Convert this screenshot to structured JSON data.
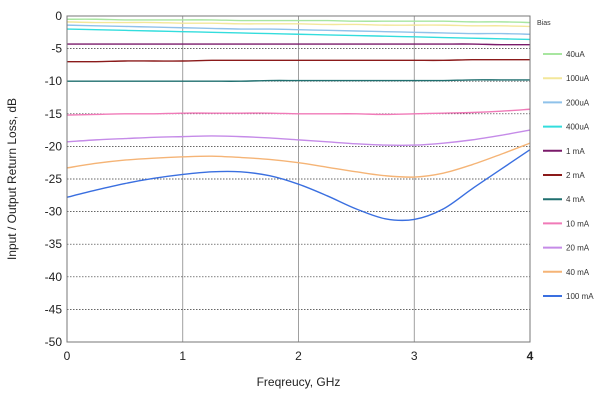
{
  "chart_data": {
    "type": "line",
    "title": "",
    "xlabel": "Freqreucy, GHz",
    "ylabel": "Input / Output Return Loss, dB",
    "xlim": [
      0,
      4
    ],
    "ylim": [
      -50,
      0
    ],
    "x_ticks": [
      "0",
      "1",
      "2",
      "3",
      "4"
    ],
    "y_ticks": [
      "0",
      "-5",
      "-10",
      "-15",
      "-20",
      "-25",
      "-30",
      "-35",
      "-40",
      "-45",
      "-50"
    ],
    "grid": "on",
    "legend_position": "right",
    "legend_title": "Bias",
    "x": [
      0,
      0.25,
      0.5,
      0.75,
      1.0,
      1.25,
      1.5,
      1.75,
      2.0,
      2.25,
      2.5,
      2.75,
      3.0,
      3.25,
      3.5,
      3.75,
      4.0
    ],
    "series": [
      {
        "name": "40uA",
        "color": "#a8e6a0",
        "values": [
          -0.5,
          -0.5,
          -0.6,
          -0.6,
          -0.6,
          -0.6,
          -0.7,
          -0.7,
          -0.7,
          -0.7,
          -0.8,
          -0.8,
          -0.8,
          -0.8,
          -0.9,
          -0.9,
          -1.0
        ]
      },
      {
        "name": "100uA",
        "color": "#f3e79a",
        "values": [
          -0.9,
          -1.0,
          -1.0,
          -1.0,
          -1.1,
          -1.1,
          -1.2,
          -1.2,
          -1.2,
          -1.3,
          -1.3,
          -1.4,
          -1.4,
          -1.4,
          -1.5,
          -1.5,
          -1.6
        ]
      },
      {
        "name": "200uA",
        "color": "#8fc2ea",
        "values": [
          -1.4,
          -1.5,
          -1.6,
          -1.7,
          -1.8,
          -1.9,
          -2.0,
          -2.0,
          -2.1,
          -2.2,
          -2.3,
          -2.4,
          -2.5,
          -2.6,
          -2.7,
          -2.7,
          -2.8
        ]
      },
      {
        "name": "400uA",
        "color": "#33dddd",
        "values": [
          -2.0,
          -2.1,
          -2.2,
          -2.3,
          -2.4,
          -2.5,
          -2.6,
          -2.7,
          -2.8,
          -2.9,
          -3.0,
          -3.1,
          -3.2,
          -3.3,
          -3.4,
          -3.5,
          -3.6
        ]
      },
      {
        "name": "1 mA",
        "color": "#7a1a6a",
        "values": [
          -4.3,
          -4.3,
          -4.3,
          -4.3,
          -4.3,
          -4.3,
          -4.3,
          -4.3,
          -4.3,
          -4.3,
          -4.3,
          -4.3,
          -4.3,
          -4.3,
          -4.3,
          -4.4,
          -4.4
        ]
      },
      {
        "name": "2 mA",
        "color": "#8b1a1a",
        "values": [
          -7.0,
          -7.0,
          -6.9,
          -6.9,
          -6.9,
          -6.8,
          -6.8,
          -6.8,
          -6.8,
          -6.8,
          -6.8,
          -6.8,
          -6.8,
          -6.8,
          -6.7,
          -6.7,
          -6.7
        ]
      },
      {
        "name": "4 mA",
        "color": "#1f6f6f",
        "values": [
          -10.0,
          -10.0,
          -10.0,
          -10.0,
          -10.0,
          -10.0,
          -10.0,
          -9.9,
          -9.9,
          -9.9,
          -9.9,
          -9.9,
          -9.9,
          -9.9,
          -9.8,
          -9.8,
          -9.8
        ]
      },
      {
        "name": "10 mA",
        "color": "#f07ab8",
        "values": [
          -15.2,
          -15.1,
          -15.0,
          -15.0,
          -14.9,
          -14.9,
          -14.9,
          -14.9,
          -15.0,
          -15.0,
          -15.0,
          -15.1,
          -15.0,
          -14.9,
          -14.8,
          -14.6,
          -14.3
        ]
      },
      {
        "name": "20 mA",
        "color": "#c58be8",
        "values": [
          -19.3,
          -19.0,
          -18.8,
          -18.6,
          -18.5,
          -18.4,
          -18.5,
          -18.7,
          -19.0,
          -19.3,
          -19.6,
          -19.8,
          -19.8,
          -19.5,
          -19.0,
          -18.3,
          -17.5
        ]
      },
      {
        "name": "40 mA",
        "color": "#f5b476",
        "values": [
          -23.3,
          -22.6,
          -22.1,
          -21.8,
          -21.6,
          -21.5,
          -21.7,
          -22.0,
          -22.5,
          -23.2,
          -23.9,
          -24.5,
          -24.7,
          -24.1,
          -22.8,
          -21.2,
          -19.5
        ]
      },
      {
        "name": "100 mA",
        "color": "#3a6fe0",
        "values": [
          -27.8,
          -26.7,
          -25.7,
          -24.9,
          -24.3,
          -23.9,
          -23.9,
          -24.5,
          -25.8,
          -27.6,
          -29.6,
          -31.1,
          -31.2,
          -29.6,
          -26.5,
          -23.5,
          -20.5
        ]
      }
    ]
  }
}
